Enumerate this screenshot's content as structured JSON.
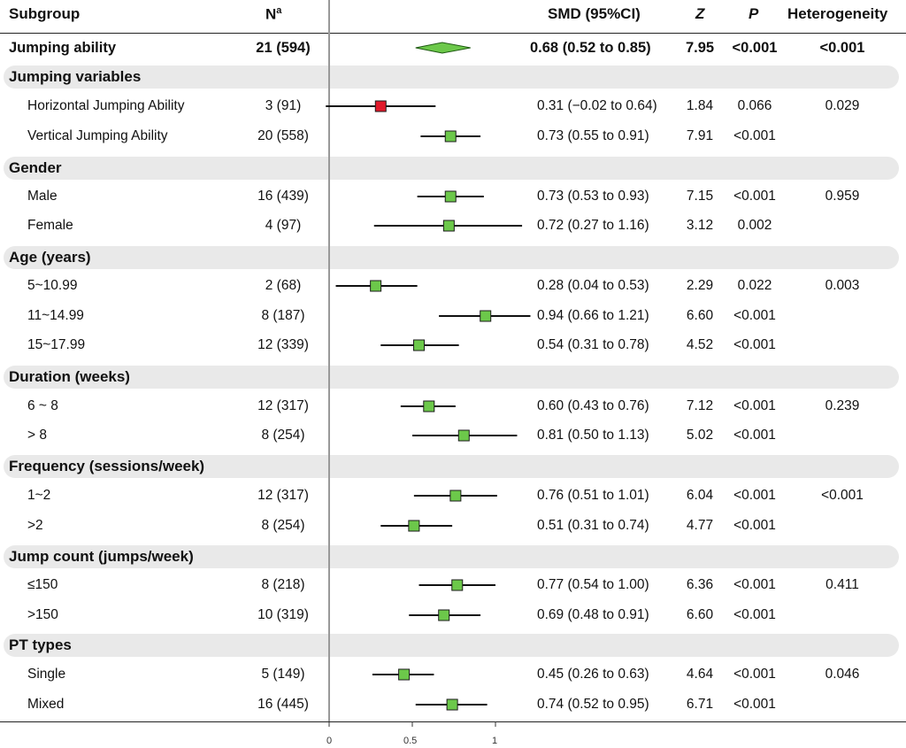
{
  "headers": {
    "subgroup": "Subgroup",
    "n": "N",
    "n_sup": "a",
    "smd": "SMD (95%CI)",
    "z": "Z",
    "p": "P",
    "het": "Heterogeneity"
  },
  "overall": {
    "label": "Jumping ability",
    "n": "21 (594)",
    "ci": "0.68 (0.52 to 0.85)",
    "z": "7.95",
    "p": "<0.001",
    "het": "<0.001"
  },
  "categories": [
    "Jumping variables",
    "Gender",
    "Age (years)",
    "Duration  (weeks)",
    "Frequency  (sessions/week)",
    "Jump count  (jumps/week)",
    "PT types"
  ],
  "rows": [
    {
      "label": "Horizontal Jumping Ability",
      "n": "3 (91)",
      "ci": "0.31 (−0.02 to 0.64)",
      "z": "1.84",
      "p": "0.066",
      "het": "0.029"
    },
    {
      "label": "Vertical Jumping Ability",
      "n": "20 (558)",
      "ci": "0.73 (0.55 to 0.91)",
      "z": "7.91",
      "p": "<0.001",
      "het": ""
    },
    {
      "label": "Male",
      "n": "16 (439)",
      "ci": "0.73 (0.53 to 0.93)",
      "z": "7.15",
      "p": "<0.001",
      "het": "0.959"
    },
    {
      "label": "Female",
      "n": "4 (97)",
      "ci": "0.72 (0.27 to 1.16)",
      "z": "3.12",
      "p": "0.002",
      "het": ""
    },
    {
      "label": "5~10.99",
      "n": "2 (68)",
      "ci": "0.28 (0.04 to 0.53)",
      "z": "2.29",
      "p": "0.022",
      "het": "0.003"
    },
    {
      "label": "11~14.99",
      "n": "8 (187)",
      "ci": "0.94 (0.66 to 1.21)",
      "z": "6.60",
      "p": "<0.001",
      "het": ""
    },
    {
      "label": "15~17.99",
      "n": "12 (339)",
      "ci": "0.54 (0.31 to 0.78)",
      "z": "4.52",
      "p": "<0.001",
      "het": ""
    },
    {
      "label": "6 ~ 8",
      "n": "12 (317)",
      "ci": "0.60 (0.43 to 0.76)",
      "z": "7.12",
      "p": "<0.001",
      "het": "0.239"
    },
    {
      "label": "> 8",
      "n": "8 (254)",
      "ci": "0.81 (0.50 to 1.13)",
      "z": "5.02",
      "p": "<0.001",
      "het": ""
    },
    {
      "label": "1~2",
      "n": "12 (317)",
      "ci": "0.76 (0.51 to 1.01)",
      "z": "6.04",
      "p": "<0.001",
      "het": "<0.001"
    },
    {
      "label": ">2",
      "n": "8 (254)",
      "ci": "0.51 (0.31 to 0.74)",
      "z": "4.77",
      "p": "<0.001",
      "het": ""
    },
    {
      "label": "≤150",
      "n": "8 (218)",
      "ci": "0.77 (0.54 to 1.00)",
      "z": "6.36",
      "p": "<0.001",
      "het": "0.411"
    },
    {
      "label": ">150",
      "n": "10 (319)",
      "ci": "0.69 (0.48 to 0.91)",
      "z": "6.60",
      "p": "<0.001",
      "het": ""
    },
    {
      "label": "Single",
      "n": "5 (149)",
      "ci": "0.45 (0.26 to 0.63)",
      "z": "4.64",
      "p": "<0.001",
      "het": "0.046"
    },
    {
      "label": "Mixed",
      "n": "16 (445)",
      "ci": "0.74 (0.52 to 0.95)",
      "z": "6.71",
      "p": "<0.001",
      "het": ""
    }
  ],
  "chart_data": {
    "type": "forest",
    "x_ticks": [
      "0",
      "0.5",
      "1"
    ],
    "xlim": [
      0,
      1.25
    ],
    "reference_line": 0,
    "overall": {
      "est": 0.68,
      "lo": 0.52,
      "hi": 0.85
    },
    "series": [
      {
        "name": "Horizontal Jumping Ability",
        "est": 0.31,
        "lo": -0.02,
        "hi": 0.64,
        "color": "#e0192a"
      },
      {
        "name": "Vertical Jumping Ability",
        "est": 0.73,
        "lo": 0.55,
        "hi": 0.91,
        "color": "#6cc84a"
      },
      {
        "name": "Male",
        "est": 0.73,
        "lo": 0.53,
        "hi": 0.93,
        "color": "#6cc84a"
      },
      {
        "name": "Female",
        "est": 0.72,
        "lo": 0.27,
        "hi": 1.16,
        "color": "#6cc84a"
      },
      {
        "name": "5~10.99",
        "est": 0.28,
        "lo": 0.04,
        "hi": 0.53,
        "color": "#6cc84a"
      },
      {
        "name": "11~14.99",
        "est": 0.94,
        "lo": 0.66,
        "hi": 1.21,
        "color": "#6cc84a"
      },
      {
        "name": "15~17.99",
        "est": 0.54,
        "lo": 0.31,
        "hi": 0.78,
        "color": "#6cc84a"
      },
      {
        "name": "6 ~ 8",
        "est": 0.6,
        "lo": 0.43,
        "hi": 0.76,
        "color": "#6cc84a"
      },
      {
        "name": "> 8",
        "est": 0.81,
        "lo": 0.5,
        "hi": 1.13,
        "color": "#6cc84a"
      },
      {
        "name": "1~2",
        "est": 0.76,
        "lo": 0.51,
        "hi": 1.01,
        "color": "#6cc84a"
      },
      {
        "name": ">2",
        "est": 0.51,
        "lo": 0.31,
        "hi": 0.74,
        "color": "#6cc84a"
      },
      {
        "name": "≤150",
        "est": 0.77,
        "lo": 0.54,
        "hi": 1.0,
        "color": "#6cc84a"
      },
      {
        "name": ">150",
        "est": 0.69,
        "lo": 0.48,
        "hi": 0.91,
        "color": "#6cc84a"
      },
      {
        "name": "Single",
        "est": 0.45,
        "lo": 0.26,
        "hi": 0.63,
        "color": "#6cc84a"
      },
      {
        "name": "Mixed",
        "est": 0.74,
        "lo": 0.52,
        "hi": 0.95,
        "color": "#6cc84a"
      }
    ]
  }
}
